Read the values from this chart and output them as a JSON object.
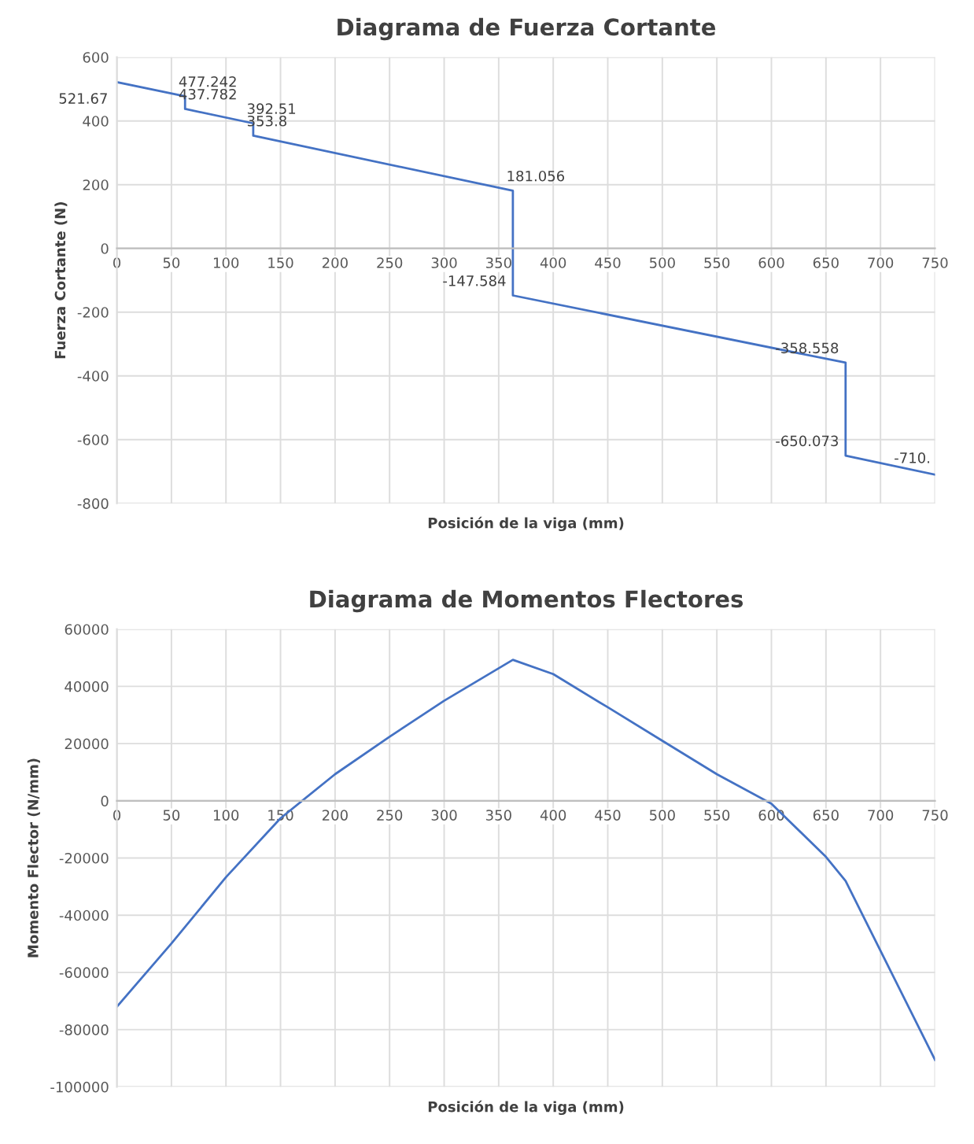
{
  "chart_data": [
    {
      "type": "line",
      "title": "Diagrama de Fuerza Cortante",
      "xlabel": "Posición de la viga (mm)",
      "ylabel": "Fuerza Cortante (N)",
      "series": [
        {
          "color": "#4472c4",
          "x": [
            0,
            62.5,
            62.5,
            125,
            125,
            363,
            363,
            668,
            668,
            750
          ],
          "values": [
            521.67,
            477.242,
            437.782,
            392.51,
            353.8,
            181.056,
            -147.584,
            -358.558,
            -650.073,
            -710
          ],
          "value_labels": [
            "521.67",
            "477.242",
            "437.782",
            "392.51",
            "353.8",
            "181.056",
            "-147.584",
            "-358.558",
            "-650.073",
            "-710."
          ]
        }
      ],
      "xlim": [
        0,
        750
      ],
      "xticks": [
        0,
        50,
        100,
        150,
        200,
        250,
        300,
        350,
        400,
        450,
        500,
        550,
        600,
        650,
        700,
        750
      ],
      "ylim": [
        -800,
        600
      ],
      "yticks": [
        -800,
        -600,
        -400,
        -200,
        0,
        200,
        400,
        600
      ],
      "grid": true,
      "marker": "none",
      "line_style": "solid"
    },
    {
      "type": "line",
      "title": "Diagrama de Momentos Flectores",
      "xlabel": "Posición de la viga (mm)",
      "ylabel": "Momento Flector (N/mm)",
      "series": [
        {
          "color": "#4472c4",
          "x": [
            0,
            50,
            100,
            150,
            200,
            250,
            300,
            363,
            400,
            450,
            500,
            550,
            600,
            650,
            668,
            750
          ],
          "values": [
            -72000,
            -49900,
            -26700,
            -6100,
            9300,
            22400,
            35000,
            49300,
            44300,
            32700,
            21000,
            9300,
            -1000,
            -19600,
            -28000,
            -90600
          ]
        }
      ],
      "xlim": [
        0,
        750
      ],
      "xticks": [
        0,
        50,
        100,
        150,
        200,
        250,
        300,
        350,
        400,
        450,
        500,
        550,
        600,
        650,
        700,
        750
      ],
      "ylim": [
        -100000,
        60000
      ],
      "yticks": [
        -100000,
        -80000,
        -60000,
        -40000,
        -20000,
        0,
        20000,
        40000,
        60000
      ],
      "grid": true,
      "marker": "none",
      "line_style": "solid"
    }
  ]
}
